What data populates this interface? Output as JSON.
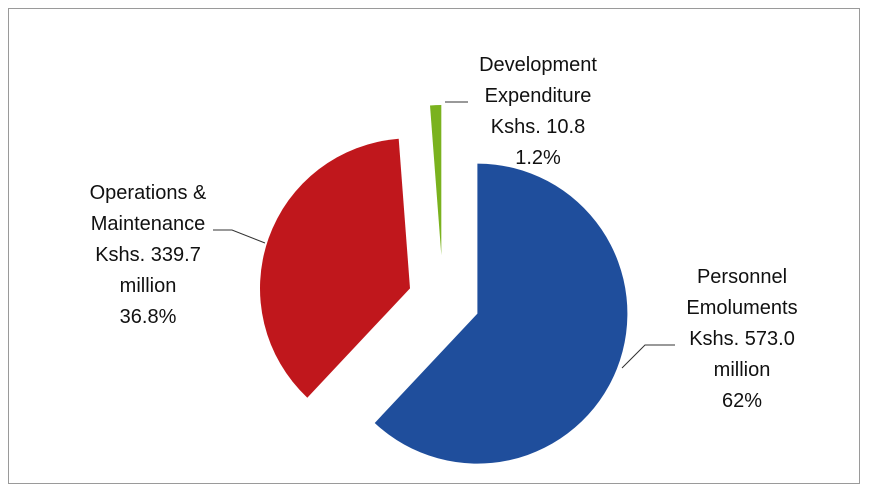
{
  "chart_data": {
    "type": "pie",
    "categories": [
      "Personnel Emoluments",
      "Operations & Maintenance",
      "Development Expenditure"
    ],
    "values": [
      62,
      36.8,
      1.2
    ],
    "value_labels": [
      "62%",
      "36.8%",
      "1.2%"
    ],
    "amounts": [
      573.0,
      339.7,
      10.8
    ],
    "amount_labels": [
      "Kshs. 573.0 million",
      "Kshs. 339.7 million",
      "Kshs. 10.8"
    ],
    "colors": [
      "#1f4e9c",
      "#c0171c",
      "#7ab21e"
    ]
  }
}
